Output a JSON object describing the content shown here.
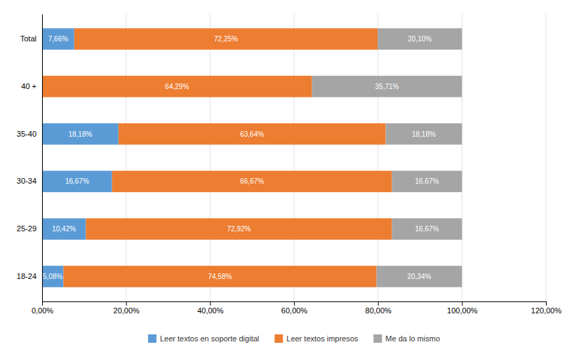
{
  "chart_data": {
    "type": "bar",
    "orientation": "horizontal",
    "stacked": true,
    "data_labels": true,
    "grid": true,
    "legend": "bottom",
    "categories": [
      "18-24",
      "25-29",
      "30-34",
      "35-40",
      "40 +",
      "Total"
    ],
    "series": [
      {
        "name": "Leer textos en soporte digital",
        "color": "#5B9BD5",
        "values": [
          5.08,
          10.42,
          16.67,
          18.18,
          0.0,
          7.66
        ],
        "value_labels": [
          "5,08%",
          "10,42%",
          "16,67%",
          "18,18%",
          null,
          "7,66%"
        ]
      },
      {
        "name": "Leer textos impresos",
        "color": "#ED7D31",
        "values": [
          74.58,
          72.92,
          66.67,
          63.64,
          64.29,
          72.25
        ],
        "value_labels": [
          "74,58%",
          "72,92%",
          "66,67%",
          "63,64%",
          "64,29%",
          "72,25%"
        ]
      },
      {
        "name": "Me da lo mismo",
        "color": "#A5A5A5",
        "values": [
          20.34,
          16.67,
          16.67,
          18.18,
          35.71,
          20.1
        ],
        "value_labels": [
          "20,34%",
          "16,67%",
          "16,67%",
          "18,18%",
          "35,71%",
          "20,10%"
        ]
      }
    ],
    "xlim": [
      0,
      120
    ],
    "xticks": [
      {
        "value": 0,
        "label": "0,00%"
      },
      {
        "value": 20,
        "label": "20,00%"
      },
      {
        "value": 40,
        "label": "40,00%"
      },
      {
        "value": 60,
        "label": "60,00%"
      },
      {
        "value": 80,
        "label": "80,00%"
      },
      {
        "value": 100,
        "label": "100,00%"
      },
      {
        "value": 120,
        "label": "120,00%"
      }
    ]
  }
}
